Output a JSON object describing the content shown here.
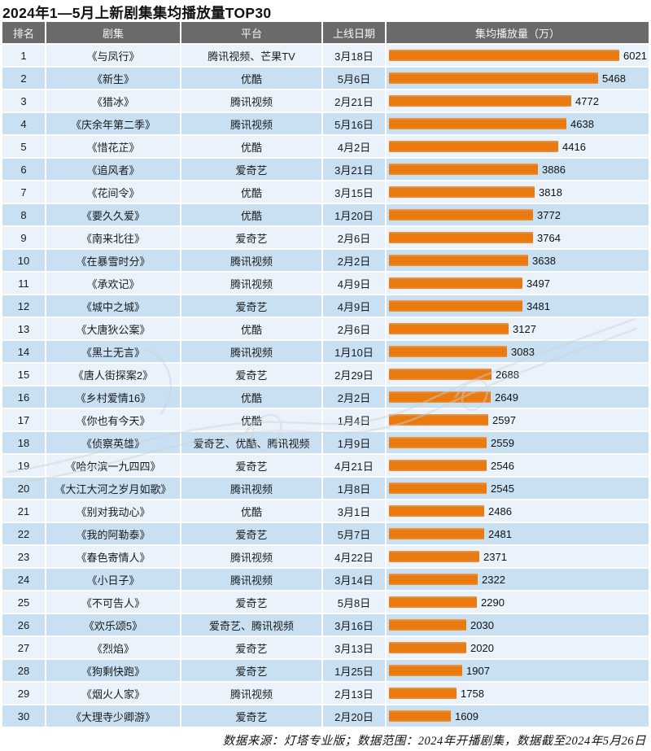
{
  "title": "2024年1—5月上新剧集集均播放量TOP30",
  "footer": "数据来源：灯塔专业版；数据范围：2024年开播剧集，数据截至2024年5月26日",
  "colors": {
    "bar": "#E87A10",
    "header_bg": "#6A6A6A",
    "header_text": "#F5F5F5",
    "row_odd": "#EAF3FB",
    "row_even": "#C8E0F2"
  },
  "table": {
    "headers": [
      "排名",
      "剧集",
      "平台",
      "上线日期",
      "集均播放量（万）"
    ],
    "rows": [
      {
        "rank": "1",
        "title": "《与凤行》",
        "platform": "腾讯视频、芒果TV",
        "date": "3月18日",
        "value": 6021
      },
      {
        "rank": "2",
        "title": "《新生》",
        "platform": "优酷",
        "date": "5月6日",
        "value": 5468
      },
      {
        "rank": "3",
        "title": "《猎冰》",
        "platform": "腾讯视频",
        "date": "2月21日",
        "value": 4772
      },
      {
        "rank": "4",
        "title": "《庆余年第二季》",
        "platform": "腾讯视频",
        "date": "5月16日",
        "value": 4638
      },
      {
        "rank": "5",
        "title": "《惜花芷》",
        "platform": "优酷",
        "date": "4月2日",
        "value": 4416
      },
      {
        "rank": "6",
        "title": "《追风者》",
        "platform": "爱奇艺",
        "date": "3月21日",
        "value": 3886
      },
      {
        "rank": "7",
        "title": "《花间令》",
        "platform": "优酷",
        "date": "3月15日",
        "value": 3818
      },
      {
        "rank": "8",
        "title": "《要久久爱》",
        "platform": "优酷",
        "date": "1月20日",
        "value": 3772
      },
      {
        "rank": "9",
        "title": "《南来北往》",
        "platform": "爱奇艺",
        "date": "2月6日",
        "value": 3764
      },
      {
        "rank": "10",
        "title": "《在暴雪时分》",
        "platform": "腾讯视频",
        "date": "2月2日",
        "value": 3638
      },
      {
        "rank": "11",
        "title": "《承欢记》",
        "platform": "腾讯视频",
        "date": "4月9日",
        "value": 3497
      },
      {
        "rank": "12",
        "title": "《城中之城》",
        "platform": "爱奇艺",
        "date": "4月9日",
        "value": 3481
      },
      {
        "rank": "13",
        "title": "《大唐狄公案》",
        "platform": "优酷",
        "date": "2月6日",
        "value": 3127
      },
      {
        "rank": "14",
        "title": "《黑土无言》",
        "platform": "腾讯视频",
        "date": "1月10日",
        "value": 3083
      },
      {
        "rank": "15",
        "title": "《唐人街探案2》",
        "platform": "爱奇艺",
        "date": "2月29日",
        "value": 2688
      },
      {
        "rank": "16",
        "title": "《乡村爱情16》",
        "platform": "优酷",
        "date": "2月2日",
        "value": 2649
      },
      {
        "rank": "17",
        "title": "《你也有今天》",
        "platform": "优酷",
        "date": "1月4日",
        "value": 2597
      },
      {
        "rank": "18",
        "title": "《侦察英雄》",
        "platform": "爱奇艺、优酷、腾讯视频",
        "date": "1月9日",
        "value": 2559
      },
      {
        "rank": "19",
        "title": "《哈尔滨一九四四》",
        "platform": "爱奇艺",
        "date": "4月21日",
        "value": 2546
      },
      {
        "rank": "20",
        "title": "《大江大河之岁月如歌》",
        "platform": "腾讯视频",
        "date": "1月8日",
        "value": 2545
      },
      {
        "rank": "21",
        "title": "《别对我动心》",
        "platform": "优酷",
        "date": "3月1日",
        "value": 2486
      },
      {
        "rank": "22",
        "title": "《我的阿勒泰》",
        "platform": "爱奇艺",
        "date": "5月7日",
        "value": 2481
      },
      {
        "rank": "23",
        "title": "《春色寄情人》",
        "platform": "腾讯视频",
        "date": "4月22日",
        "value": 2371
      },
      {
        "rank": "24",
        "title": "《小日子》",
        "platform": "腾讯视频",
        "date": "3月14日",
        "value": 2322
      },
      {
        "rank": "25",
        "title": "《不可告人》",
        "platform": "爱奇艺",
        "date": "5月8日",
        "value": 2290
      },
      {
        "rank": "26",
        "title": "《欢乐颂5》",
        "platform": "爱奇艺、腾讯视频",
        "date": "3月16日",
        "value": 2030
      },
      {
        "rank": "27",
        "title": "《烈焰》",
        "platform": "爱奇艺",
        "date": "3月13日",
        "value": 2020
      },
      {
        "rank": "28",
        "title": "《狗剩快跑》",
        "platform": "爱奇艺",
        "date": "1月25日",
        "value": 1907
      },
      {
        "rank": "29",
        "title": "《烟火人家》",
        "platform": "腾讯视频",
        "date": "2月13日",
        "value": 1758
      },
      {
        "rank": "30",
        "title": "《大理寺少卿游》",
        "platform": "爱奇艺",
        "date": "2月20日",
        "value": 1609
      }
    ]
  },
  "chart_data": {
    "type": "bar",
    "orientation": "horizontal",
    "title": "2024年1—5月上新剧集集均播放量TOP30",
    "value_label": "集均播放量（万）",
    "legend": false,
    "grid": false,
    "scale_max": 6021,
    "xlim": [
      0,
      6021
    ],
    "bar_color": "#E87A10",
    "categories": [
      "《与凤行》",
      "《新生》",
      "《猎冰》",
      "《庆余年第二季》",
      "《惜花芷》",
      "《追风者》",
      "《花间令》",
      "《要久久爱》",
      "《南来北往》",
      "《在暴雪时分》",
      "《承欢记》",
      "《城中之城》",
      "《大唐狄公案》",
      "《黑土无言》",
      "《唐人街探案2》",
      "《乡村爱情16》",
      "《你也有今天》",
      "《侦察英雄》",
      "《哈尔滨一九四四》",
      "《大江大河之岁月如歌》",
      "《别对我动心》",
      "《我的阿勒泰》",
      "《春色寄情人》",
      "《小日子》",
      "《不可告人》",
      "《欢乐颂5》",
      "《烈焰》",
      "《狗剩快跑》",
      "《烟火人家》",
      "《大理寺少卿游》"
    ],
    "values": [
      6021,
      5468,
      4772,
      4638,
      4416,
      3886,
      3818,
      3772,
      3764,
      3638,
      3497,
      3481,
      3127,
      3083,
      2688,
      2649,
      2597,
      2559,
      2546,
      2545,
      2486,
      2481,
      2371,
      2322,
      2290,
      2030,
      2020,
      1907,
      1758,
      1609
    ]
  }
}
